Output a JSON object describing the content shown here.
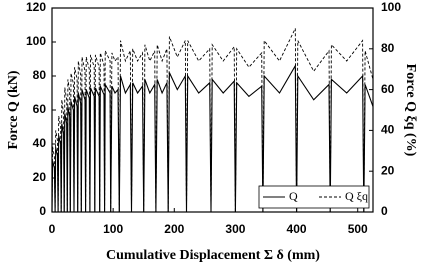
{
  "chart_data": {
    "type": "line",
    "xlabel": "Cumulative Displacement Σ δ  (mm)",
    "ylabel": "Force Q  (kN)",
    "y2label": "Force Q ξq  (%)",
    "xlim": [
      0,
      525
    ],
    "xticks": [
      0,
      100,
      200,
      300,
      400,
      500
    ],
    "ylim": [
      0,
      120
    ],
    "yticks": [
      0,
      20,
      40,
      60,
      80,
      100,
      120
    ],
    "y2lim": [
      0,
      100
    ],
    "y2ticks": [
      0,
      20,
      40,
      60,
      80,
      100
    ],
    "legend": "lower right",
    "x": [
      0,
      1,
      4,
      5,
      6,
      9,
      10,
      11,
      14,
      15,
      16,
      19,
      20,
      21,
      24,
      25,
      26,
      29,
      30,
      31,
      35,
      36,
      37,
      41,
      42,
      43,
      47,
      48,
      49,
      54,
      55,
      56,
      61,
      62,
      63,
      69,
      70,
      71,
      77,
      78,
      79,
      85,
      86,
      87,
      95,
      96,
      98,
      103,
      108,
      110,
      112,
      120,
      128,
      130,
      132,
      140,
      148,
      150,
      152,
      160,
      168,
      170,
      172,
      180,
      188,
      190,
      192,
      205,
      218,
      220,
      222,
      240,
      258,
      260,
      262,
      280,
      298,
      300,
      302,
      322,
      343,
      345,
      347,
      372,
      398,
      400,
      402,
      428,
      453,
      455,
      457,
      482,
      508,
      510,
      512,
      525
    ],
    "series": [
      {
        "name": "Q",
        "color": "#000000",
        "dash": false,
        "values": [
          0,
          30,
          26,
          0,
          38,
          33,
          0,
          45,
          40,
          0,
          52,
          46,
          0,
          58,
          52,
          0,
          62,
          56,
          0,
          65,
          60,
          0,
          68,
          62,
          0,
          70,
          64,
          0,
          72,
          66,
          0,
          72,
          67,
          0,
          73,
          68,
          0,
          73,
          68,
          0,
          74,
          69,
          0,
          75,
          70,
          0,
          74,
          70,
          72,
          0,
          80,
          70,
          75,
          0,
          76,
          70,
          74,
          0,
          78,
          70,
          75,
          0,
          78,
          70,
          76,
          0,
          82,
          72,
          80,
          0,
          80,
          70,
          76,
          0,
          78,
          70,
          77,
          0,
          76,
          68,
          74,
          0,
          80,
          70,
          86,
          0,
          80,
          66,
          75,
          0,
          78,
          70,
          80,
          0,
          75,
          62
        ]
      },
      {
        "name": "Q ξq",
        "color": "#000000",
        "dash": true,
        "axis": "y2",
        "values": [
          0,
          32,
          27,
          0,
          40,
          35,
          0,
          47,
          42,
          0,
          55,
          48,
          0,
          61,
          55,
          0,
          65,
          59,
          0,
          68,
          63,
          0,
          71,
          65,
          0,
          74,
          67,
          0,
          76,
          69,
          0,
          76,
          70,
          0,
          77,
          71,
          0,
          77,
          71,
          0,
          78,
          72,
          0,
          79,
          74,
          0,
          78,
          74,
          76,
          0,
          84,
          74,
          79,
          0,
          80,
          74,
          78,
          0,
          82,
          74,
          79,
          0,
          82,
          74,
          80,
          0,
          86,
          76,
          84,
          0,
          84,
          74,
          80,
          0,
          82,
          74,
          81,
          0,
          80,
          71,
          78,
          0,
          84,
          74,
          90,
          0,
          84,
          69,
          79,
          0,
          82,
          74,
          84,
          0,
          79,
          65
        ]
      }
    ]
  }
}
